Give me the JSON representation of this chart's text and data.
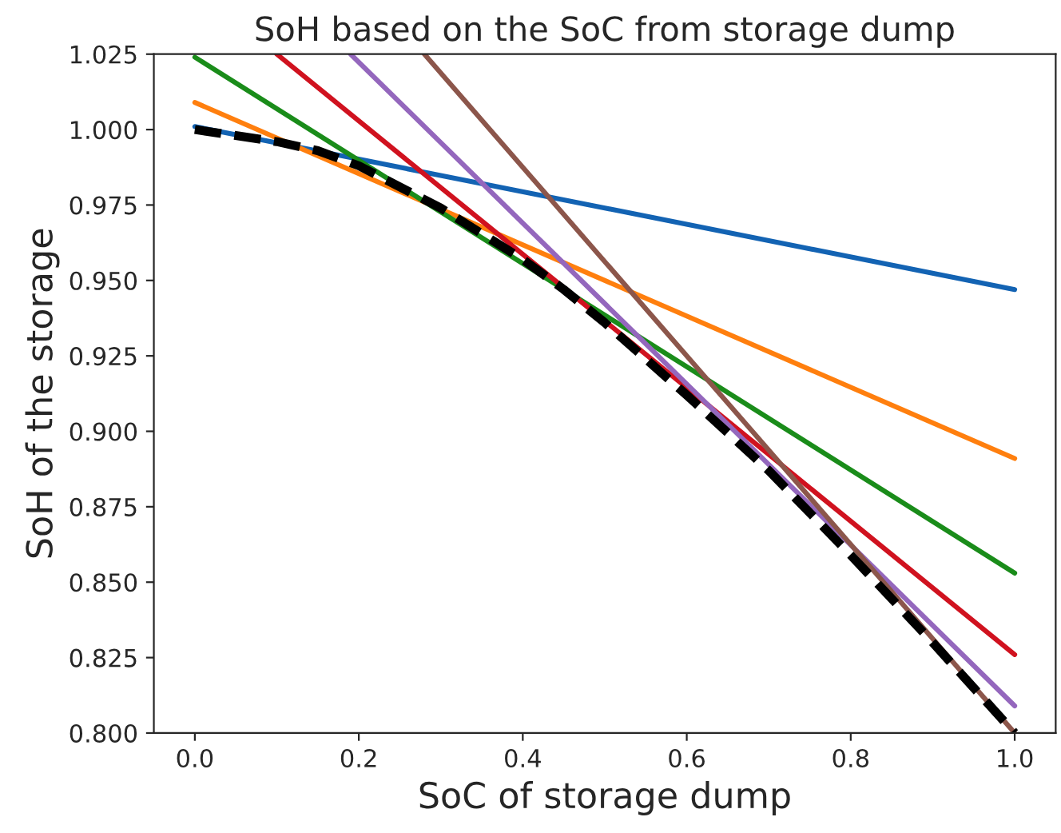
{
  "chart_data": {
    "type": "line",
    "title": "SoH based on the SoC from storage dump",
    "xlabel": "SoC of storage dump",
    "ylabel": "SoH of the storage",
    "xlim": [
      -0.05,
      1.05
    ],
    "ylim": [
      0.8,
      1.025
    ],
    "xticks": [
      {
        "value": 0,
        "label": "0.0"
      },
      0.2,
      0.4,
      0.6,
      0.8,
      {
        "value": 1,
        "label": "1.0"
      }
    ],
    "yticks": [
      {
        "value": 0.8,
        "label": "0.800"
      },
      0.825,
      {
        "value": 0.85,
        "label": "0.850"
      },
      0.875,
      {
        "value": 0.9,
        "label": "0.900"
      },
      0.925,
      {
        "value": 0.95,
        "label": "0.950"
      },
      0.975,
      {
        "value": 1,
        "label": "1.000"
      },
      1.025
    ],
    "grid": false,
    "legend": false,
    "marker": "none",
    "series": [
      {
        "color": "#1363b3",
        "x": [
          0,
          1
        ],
        "values": [
          1.001,
          0.947
        ]
      },
      {
        "color": "#ff7f0e",
        "x": [
          0,
          1
        ],
        "values": [
          1.009,
          0.891
        ]
      },
      {
        "color": "#1a8c1a",
        "x": [
          0,
          1
        ],
        "values": [
          1.024,
          0.853
        ]
      },
      {
        "color": "#d0121f",
        "x": [
          0.1,
          1
        ],
        "values": [
          1.025,
          0.826
        ]
      },
      {
        "color": "#9467bd",
        "x": [
          0.19,
          1
        ],
        "values": [
          1.025,
          0.809
        ]
      },
      {
        "color": "#8c564b",
        "x": [
          0.28,
          1
        ],
        "values": [
          1.025,
          0.8
        ]
      },
      {
        "color": "#000000",
        "line_style": "dashed",
        "x": [
          0,
          0.1,
          0.15,
          0.2,
          0.3,
          0.4,
          0.45,
          0.5,
          0.6,
          0.7,
          0.8,
          0.9,
          1.0
        ],
        "values": [
          1.0,
          0.996,
          0.993,
          0.988,
          0.974,
          0.957,
          0.947,
          0.936,
          0.912,
          0.887,
          0.859,
          0.83,
          0.8
        ]
      }
    ]
  }
}
